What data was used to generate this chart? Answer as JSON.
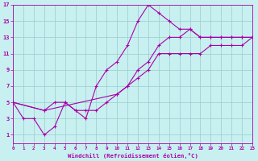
{
  "xlabel": "Windchill (Refroidissement éolien,°C)",
  "bg_color": "#c8f0f0",
  "line_color": "#aa00aa",
  "grid_color": "#99cccc",
  "xmin": 0,
  "xmax": 23,
  "ymin": 0,
  "ymax": 17,
  "xticks": [
    0,
    1,
    2,
    3,
    4,
    5,
    6,
    7,
    8,
    9,
    10,
    11,
    12,
    13,
    14,
    15,
    16,
    17,
    18,
    19,
    20,
    21,
    22,
    23
  ],
  "yticks": [
    1,
    3,
    5,
    7,
    9,
    11,
    13,
    15,
    17
  ],
  "line1_x": [
    0,
    1,
    2,
    3,
    4,
    5,
    6,
    7,
    8,
    9,
    10,
    11,
    12,
    13,
    14,
    15,
    16,
    17,
    18,
    19,
    20,
    21,
    22,
    23
  ],
  "line1_y": [
    5,
    3,
    3,
    1,
    2,
    5,
    4,
    3,
    7,
    9,
    10,
    12,
    15,
    17,
    16,
    15,
    14,
    14,
    13,
    13,
    13,
    13,
    13,
    13
  ],
  "line2_x": [
    0,
    3,
    4,
    5,
    6,
    7,
    8,
    9,
    10,
    11,
    12,
    13,
    14,
    15,
    16,
    17,
    18,
    19,
    20,
    21,
    22,
    23
  ],
  "line2_y": [
    5,
    4,
    5,
    5,
    4,
    4,
    4,
    5,
    6,
    7,
    9,
    10,
    12,
    13,
    13,
    14,
    13,
    13,
    13,
    13,
    13,
    13
  ],
  "line3_x": [
    0,
    3,
    10,
    11,
    12,
    13,
    14,
    15,
    16,
    17,
    18,
    19,
    20,
    21,
    22,
    23
  ],
  "line3_y": [
    5,
    4,
    6,
    7,
    8,
    9,
    11,
    11,
    11,
    11,
    11,
    12,
    12,
    12,
    12,
    13
  ]
}
